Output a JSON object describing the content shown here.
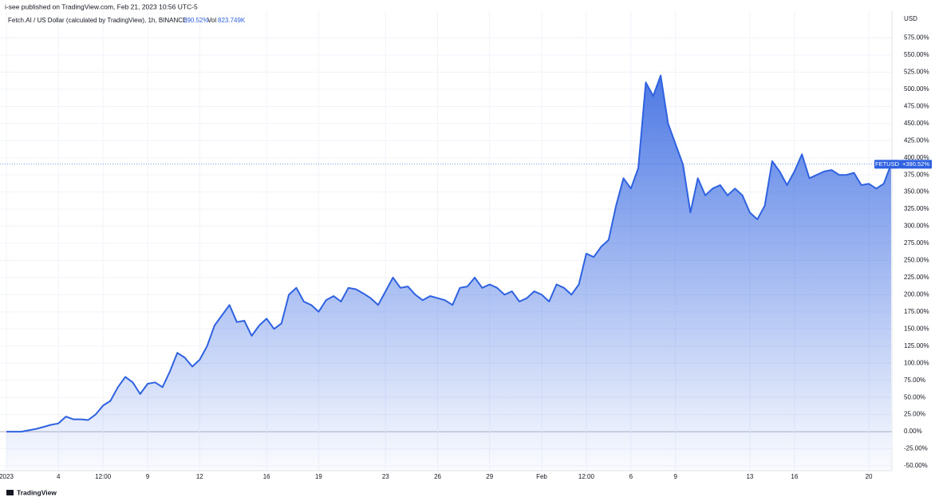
{
  "header": "i-see published on TradingView.com, Feb 21, 2023 10:56 UTC-5",
  "footer": "TradingView",
  "chart_data": {
    "type": "area",
    "title": "Fetch.AI / US Dollar (calculated by TradingView), 1h, BINANCE",
    "legend_value": "390.52%",
    "volume_label": "Vol",
    "volume_value": "823.749K",
    "axis_unit": "USD",
    "grid": true,
    "categories": [
      "2023",
      null,
      null,
      null,
      null,
      null,
      null,
      "4",
      null,
      null,
      null,
      null,
      null,
      "12:00",
      null,
      null,
      null,
      null,
      null,
      "9",
      null,
      null,
      null,
      null,
      null,
      null,
      "12",
      null,
      null,
      null,
      null,
      null,
      null,
      null,
      null,
      "16",
      null,
      null,
      null,
      null,
      null,
      null,
      "19",
      null,
      null,
      null,
      null,
      null,
      null,
      null,
      null,
      "23",
      null,
      null,
      null,
      null,
      null,
      null,
      "26",
      null,
      null,
      null,
      null,
      null,
      null,
      "29",
      null,
      null,
      null,
      null,
      null,
      null,
      "Feb",
      null,
      null,
      null,
      null,
      null,
      "12:00",
      null,
      null,
      null,
      null,
      null,
      "6",
      null,
      null,
      null,
      null,
      null,
      "9",
      null,
      null,
      null,
      null,
      null,
      null,
      null,
      null,
      null,
      "13",
      null,
      null,
      null,
      null,
      null,
      "16",
      null,
      null,
      null,
      null,
      null,
      null,
      null,
      null,
      null,
      "20",
      null,
      null,
      null
    ],
    "series": [
      {
        "name": "FETUSD",
        "color": "#2f62e0",
        "last_value_label": "+390.52%",
        "values": [
          0,
          0,
          0,
          2,
          4,
          7,
          10,
          12,
          22,
          18,
          18,
          17,
          25,
          38,
          45,
          65,
          80,
          72,
          55,
          70,
          72,
          65,
          88,
          115,
          108,
          95,
          105,
          125,
          155,
          170,
          185,
          160,
          162,
          140,
          155,
          165,
          150,
          158,
          200,
          210,
          190,
          185,
          175,
          192,
          198,
          190,
          210,
          208,
          202,
          195,
          185,
          205,
          225,
          210,
          212,
          200,
          192,
          198,
          195,
          192,
          185,
          210,
          212,
          225,
          210,
          215,
          210,
          200,
          205,
          190,
          195,
          205,
          200,
          190,
          215,
          210,
          200,
          215,
          260,
          255,
          270,
          280,
          330,
          370,
          355,
          385,
          510,
          490,
          520,
          450,
          420,
          390,
          320,
          370,
          345,
          355,
          360,
          345,
          355,
          345,
          320,
          310,
          330,
          395,
          380,
          360,
          380,
          405,
          370,
          375,
          380,
          382,
          375,
          375,
          378,
          360,
          362,
          355,
          362,
          390.52
        ]
      }
    ],
    "ylim": [
      -57,
      607
    ],
    "yticks": [
      {
        "value": -50,
        "label": "-50.00%"
      },
      {
        "value": -25,
        "label": "-25.00%"
      },
      {
        "value": 0,
        "label": "0.00%"
      },
      {
        "value": 25,
        "label": "25.00%"
      },
      {
        "value": 50,
        "label": "50.00%"
      },
      {
        "value": 75,
        "label": "75.00%"
      },
      {
        "value": 100,
        "label": "100.00%"
      },
      {
        "value": 125,
        "label": "125.00%"
      },
      {
        "value": 150,
        "label": "150.00%"
      },
      {
        "value": 175,
        "label": "175.00%"
      },
      {
        "value": 200,
        "label": "200.00%"
      },
      {
        "value": 225,
        "label": "225.00%"
      },
      {
        "value": 250,
        "label": "250.00%"
      },
      {
        "value": 275,
        "label": "275.00%"
      },
      {
        "value": 300,
        "label": "300.00%"
      },
      {
        "value": 325,
        "label": "325.00%"
      },
      {
        "value": 350,
        "label": "350.00%"
      },
      {
        "value": 375,
        "label": "375.00%"
      },
      {
        "value": 400,
        "label": "400.00%"
      },
      {
        "value": 425,
        "label": "425.00%"
      },
      {
        "value": 450,
        "label": "450.00%"
      },
      {
        "value": 475,
        "label": "475.00%"
      },
      {
        "value": 500,
        "label": "500.00%"
      },
      {
        "value": 525,
        "label": "525.00%"
      },
      {
        "value": 550,
        "label": "550.00%"
      },
      {
        "value": 575,
        "label": "575.00%"
      }
    ]
  }
}
